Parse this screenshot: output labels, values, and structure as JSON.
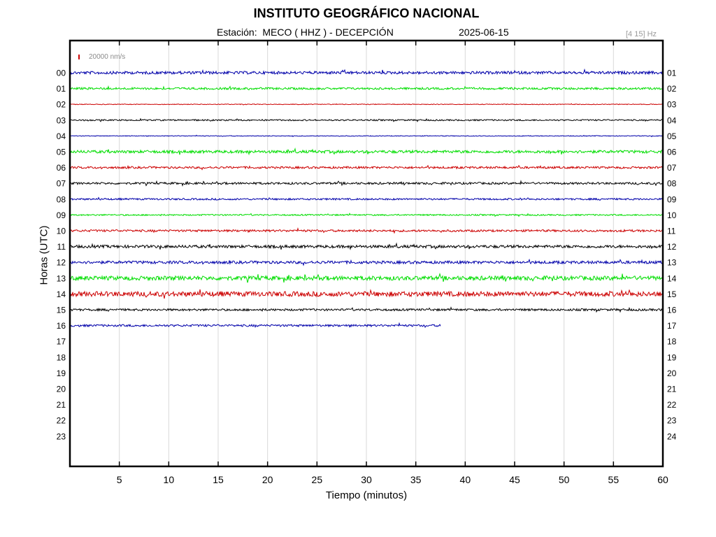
{
  "header": {
    "title": "INSTITUTO GEOGRÁFICO NACIONAL",
    "station": "Estación:  MECO ( HHZ ) - DECEPCIÓN",
    "date": "2025-06-15",
    "filter": "[4 15] Hz",
    "scale_label": "20000 nm/s"
  },
  "colors": {
    "black": "#000000",
    "blue": "#0000aa",
    "green": "#00dd00",
    "red": "#cc0000",
    "grid": "#d9d9d9",
    "scale_bar": "#cc0000"
  },
  "chart_data": {
    "type": "line",
    "chart_kind": "helicorder (seismogram drum plot)",
    "xlabel": "Tiempo (minutos)",
    "ylabel": "Horas (UTC)",
    "xlim": [
      0,
      60
    ],
    "x_ticks": [
      "5",
      "10",
      "15",
      "20",
      "25",
      "30",
      "35",
      "40",
      "45",
      "50",
      "55",
      "60"
    ],
    "x_tick_values": [
      5,
      10,
      15,
      20,
      25,
      30,
      35,
      40,
      45,
      50,
      55,
      60
    ],
    "vertical_grid": true,
    "left_hour_labels": [
      "00",
      "01",
      "02",
      "03",
      "04",
      "05",
      "06",
      "07",
      "08",
      "09",
      "10",
      "11",
      "12",
      "13",
      "14",
      "15",
      "16",
      "17",
      "18",
      "19",
      "20",
      "21",
      "22",
      "23"
    ],
    "right_hour_labels": [
      "01",
      "02",
      "03",
      "04",
      "05",
      "06",
      "07",
      "08",
      "09",
      "10",
      "11",
      "12",
      "13",
      "14",
      "15",
      "16",
      "17",
      "18",
      "19",
      "20",
      "21",
      "22",
      "23",
      "24"
    ],
    "series": [
      {
        "hour": 0,
        "color": "blue",
        "end_minute": 60,
        "amplitude": 2
      },
      {
        "hour": 1,
        "color": "green",
        "end_minute": 60,
        "amplitude": 1.5
      },
      {
        "hour": 2,
        "color": "red",
        "end_minute": 60,
        "amplitude": 0.5
      },
      {
        "hour": 3,
        "color": "black",
        "end_minute": 60,
        "amplitude": 1
      },
      {
        "hour": 4,
        "color": "blue",
        "end_minute": 60,
        "amplitude": 0.5
      },
      {
        "hour": 5,
        "color": "green",
        "end_minute": 60,
        "amplitude": 2
      },
      {
        "hour": 6,
        "color": "red",
        "end_minute": 60,
        "amplitude": 1.5
      },
      {
        "hour": 7,
        "color": "black",
        "end_minute": 60,
        "amplitude": 1.5
      },
      {
        "hour": 8,
        "color": "blue",
        "end_minute": 60,
        "amplitude": 1.2
      },
      {
        "hour": 9,
        "color": "green",
        "end_minute": 60,
        "amplitude": 1
      },
      {
        "hour": 10,
        "color": "red",
        "end_minute": 60,
        "amplitude": 1.5
      },
      {
        "hour": 11,
        "color": "black",
        "end_minute": 60,
        "amplitude": 2
      },
      {
        "hour": 12,
        "color": "blue",
        "end_minute": 60,
        "amplitude": 2
      },
      {
        "hour": 13,
        "color": "green",
        "end_minute": 60,
        "amplitude": 3
      },
      {
        "hour": 14,
        "color": "red",
        "end_minute": 60,
        "amplitude": 3.5
      },
      {
        "hour": 15,
        "color": "black",
        "end_minute": 60,
        "amplitude": 1.5
      },
      {
        "hour": 16,
        "color": "blue",
        "end_minute": 37.5,
        "amplitude": 1.5
      }
    ]
  }
}
